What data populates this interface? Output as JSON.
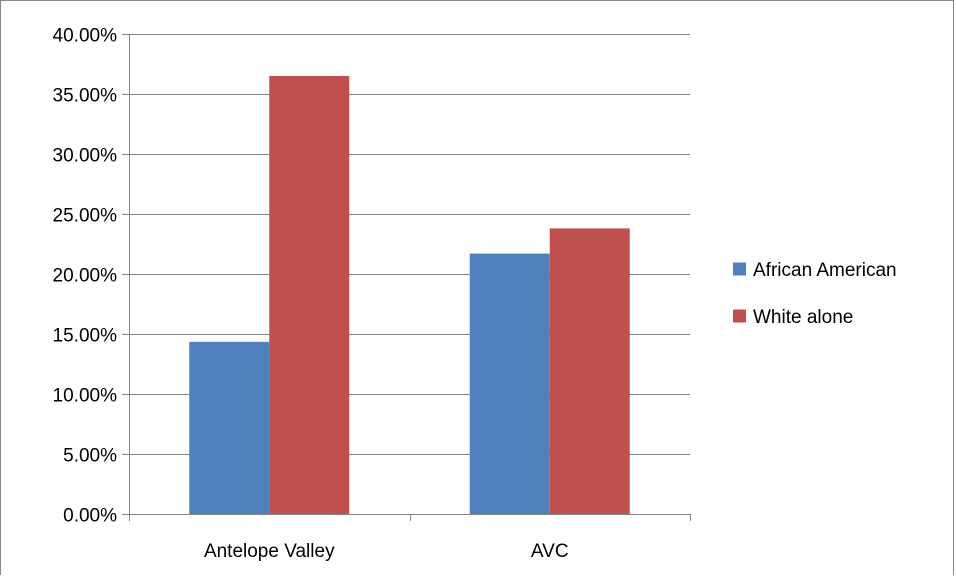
{
  "chart_data": {
    "type": "bar",
    "title": "",
    "xlabel": "",
    "ylabel": "",
    "categories": [
      "Antelope Valley",
      "AVC"
    ],
    "series": [
      {
        "name": "African American",
        "values": [
          0.1435,
          0.217
        ],
        "color": "#4F81BD"
      },
      {
        "name": "White alone",
        "values": [
          0.365,
          0.238
        ],
        "color": "#C0504D"
      }
    ],
    "ylim": [
      0,
      0.4
    ],
    "y_ticks": [
      0,
      0.05,
      0.1,
      0.15,
      0.2,
      0.25,
      0.3,
      0.35,
      0.4
    ],
    "y_tick_labels": [
      "0.00%",
      "5.00%",
      "10.00%",
      "15.00%",
      "20.00%",
      "25.00%",
      "30.00%",
      "35.00%",
      "40.00%"
    ],
    "grid": true,
    "legend_position": "right",
    "gridline_color": "#868686",
    "axis_color": "#868686"
  }
}
